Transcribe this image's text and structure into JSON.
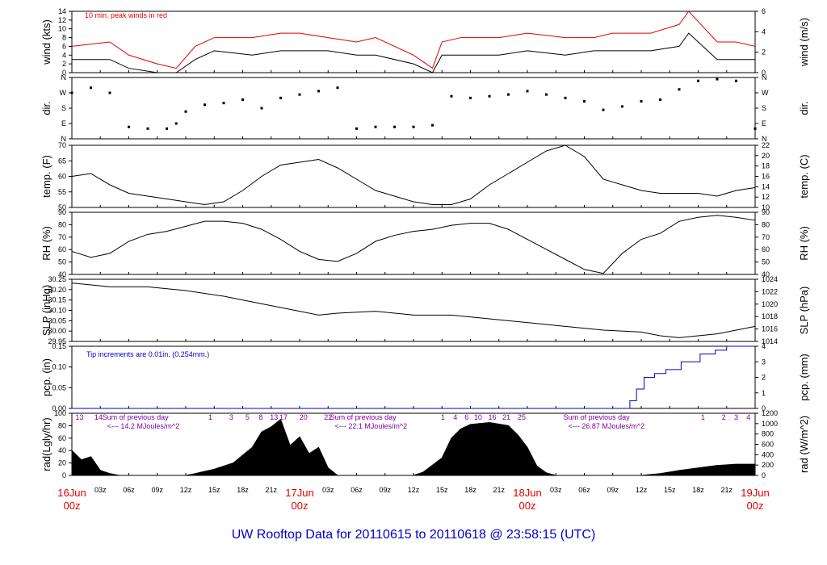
{
  "title": "UW Rooftop Data for 20110615  to  20110618 @ 23:58:15  (UTC)",
  "colors": {
    "axis": "#000000",
    "peak": "#e00000",
    "precip": "#0000cc",
    "radnote": "#8000a0",
    "title": "#0000cc"
  },
  "x_major": [
    {
      "label": "16Jun",
      "sub": "00z",
      "hour": 0
    },
    {
      "label": "17Jun",
      "sub": "00z",
      "hour": 24
    },
    {
      "label": "18Jun",
      "sub": "00z",
      "hour": 48
    },
    {
      "label": "19Jun",
      "sub": "00z",
      "hour": 72
    }
  ],
  "x_minor": [
    {
      "label": "03z",
      "hour": 3
    },
    {
      "label": "06z",
      "hour": 6
    },
    {
      "label": "09z",
      "hour": 9
    },
    {
      "label": "12z",
      "hour": 12
    },
    {
      "label": "15z",
      "hour": 15
    },
    {
      "label": "18z",
      "hour": 18
    },
    {
      "label": "21z",
      "hour": 21
    },
    {
      "label": "03z",
      "hour": 27
    },
    {
      "label": "06z",
      "hour": 30
    },
    {
      "label": "09z",
      "hour": 33
    },
    {
      "label": "12z",
      "hour": 36
    },
    {
      "label": "15z",
      "hour": 39
    },
    {
      "label": "18z",
      "hour": 42
    },
    {
      "label": "21z",
      "hour": 45
    },
    {
      "label": "03z",
      "hour": 51
    },
    {
      "label": "06z",
      "hour": 54
    },
    {
      "label": "09z",
      "hour": 57
    },
    {
      "label": "12z",
      "hour": 60
    },
    {
      "label": "15z",
      "hour": 63
    },
    {
      "label": "18z",
      "hour": 66
    },
    {
      "label": "21z",
      "hour": 69
    }
  ],
  "panels": {
    "wind": {
      "ylabel": "wind (kts)",
      "ylabel_right": "wind (m/s)",
      "note": "10 min. peak winds in red",
      "left_ticks": [
        "0",
        "2",
        "4",
        "6",
        "8",
        "10",
        "12",
        "14"
      ],
      "right_ticks": [
        "0",
        "2",
        "4",
        "6"
      ]
    },
    "dir": {
      "ylabel": "dir.",
      "ylabel_right": "dir.",
      "ticks": [
        "N",
        "E",
        "S",
        "W",
        "N"
      ]
    },
    "temp": {
      "ylabel": "temp. (F)",
      "ylabel_right": "temp. (C)",
      "left_ticks": [
        "50",
        "55",
        "60",
        "65",
        "70"
      ],
      "right_ticks": [
        "10",
        "12",
        "14",
        "16",
        "18",
        "20",
        "22"
      ]
    },
    "rh": {
      "ylabel": "RH (%)",
      "ylabel_right": "RH (%)",
      "left_ticks": [
        "40",
        "50",
        "60",
        "70",
        "80",
        "90"
      ],
      "right_ticks": [
        "40",
        "50",
        "60",
        "70",
        "80",
        "90"
      ]
    },
    "slp": {
      "ylabel": "SLP (inHg)",
      "ylabel_right": "SLP (hPa)",
      "left_ticks": [
        "29.95",
        "30.00",
        "30.05",
        "30.10",
        "30.15",
        "30.20",
        "30.25"
      ],
      "right_ticks": [
        "1014",
        "1016",
        "1018",
        "1020",
        "1022",
        "1024"
      ]
    },
    "pcp": {
      "ylabel": "pcp. (in)",
      "ylabel_right": "pcp. (mm)",
      "note": "Tip increments are 0.01in. (0.254mm.)",
      "left_ticks": [
        "0.00",
        "0.05",
        "0.10",
        "0.15"
      ],
      "right_ticks": [
        "0",
        "1",
        "2",
        "3",
        "4"
      ]
    },
    "rad": {
      "ylabel": "rad(Lgly/hr)",
      "ylabel_right": "rad (W/m^2)",
      "left_ticks": [
        "0",
        "20",
        "40",
        "60",
        "80",
        "100"
      ],
      "right_ticks": [
        "0",
        "200",
        "400",
        "600",
        "800",
        "1000",
        "1200"
      ],
      "sums": [
        {
          "label": "Sum of previous day",
          "value": "<--- 14.2 MJoules/m^2",
          "hour": 3.2
        },
        {
          "label": "Sum of previous day",
          "value": "<--- 22.1 MJoules/m^2",
          "hour": 27.2
        },
        {
          "label": "Sum of previous day",
          "value": "<--- 26.87 MJoules/m^2",
          "hour": 51.8
        }
      ],
      "hour_marks": [
        {
          "t": "13",
          "hour": 0.8
        },
        {
          "t": "14",
          "hour": 2.8
        },
        {
          "t": "1",
          "hour": 14.6
        },
        {
          "t": "3",
          "hour": 16.8
        },
        {
          "t": "5",
          "hour": 18.5
        },
        {
          "t": "8",
          "hour": 19.9
        },
        {
          "t": "13",
          "hour": 21.3
        },
        {
          "t": "17",
          "hour": 22.3
        },
        {
          "t": "20",
          "hour": 24.4
        },
        {
          "t": "22",
          "hour": 27.0
        },
        {
          "t": "1",
          "hour": 39.1
        },
        {
          "t": "4",
          "hour": 40.4
        },
        {
          "t": "6",
          "hour": 41.6
        },
        {
          "t": "10",
          "hour": 42.8
        },
        {
          "t": "16",
          "hour": 44.3
        },
        {
          "t": "21",
          "hour": 45.8
        },
        {
          "t": "25",
          "hour": 47.4
        },
        {
          "t": "1",
          "hour": 66.5
        },
        {
          "t": "2",
          "hour": 68.7
        },
        {
          "t": "3",
          "hour": 70.0
        },
        {
          "t": "4",
          "hour": 71.3
        }
      ]
    }
  },
  "chart_data": [
    {
      "type": "line",
      "panel": "wind",
      "ylabel": "wind (kts)",
      "ylim": [
        0,
        14
      ],
      "x": [
        0,
        4,
        6,
        9,
        11,
        13,
        15,
        19,
        22,
        24,
        27,
        30,
        32,
        36,
        38,
        39,
        41,
        45,
        48,
        52,
        55,
        57,
        61,
        64,
        65,
        68,
        70,
        72
      ],
      "values": [
        3,
        3,
        1,
        0,
        0,
        3,
        5,
        4,
        5,
        5,
        5,
        4,
        4,
        2,
        0,
        4,
        4,
        4,
        5,
        4,
        5,
        5,
        5,
        6,
        9,
        3,
        3,
        3
      ],
      "series": [
        {
          "name": "10 min. peak winds in red",
          "values": [
            6,
            7,
            4,
            2,
            1,
            6,
            8,
            8,
            9,
            9,
            8,
            7,
            8,
            4,
            1,
            7,
            8,
            8,
            9,
            8,
            8,
            9,
            9,
            11,
            14,
            7,
            7,
            6
          ]
        }
      ]
    },
    {
      "type": "scatter",
      "panel": "dir",
      "ylabel": "dir.",
      "ylim": [
        0,
        360
      ],
      "x": [
        0,
        2,
        4,
        6,
        8,
        10,
        11,
        12,
        14,
        16,
        18,
        20,
        22,
        24,
        26,
        28,
        30,
        32,
        34,
        36,
        38,
        40,
        42,
        44,
        46,
        48,
        50,
        52,
        54,
        56,
        58,
        60,
        62,
        64,
        66,
        68,
        70,
        72
      ],
      "values": [
        270,
        300,
        270,
        70,
        60,
        60,
        90,
        160,
        200,
        210,
        230,
        180,
        240,
        260,
        280,
        300,
        60,
        70,
        70,
        70,
        80,
        250,
        240,
        250,
        260,
        280,
        260,
        240,
        220,
        170,
        190,
        220,
        230,
        290,
        340,
        350,
        340,
        60
      ]
    },
    {
      "type": "line",
      "panel": "temp",
      "ylabel": "temp. (F)",
      "ylim": [
        50,
        72
      ],
      "x": [
        0,
        2,
        4,
        6,
        8,
        10,
        12,
        14,
        16,
        18,
        20,
        22,
        24,
        26,
        28,
        30,
        32,
        34,
        36,
        38,
        40,
        42,
        44,
        46,
        48,
        50,
        52,
        54,
        56,
        58,
        60,
        62,
        64,
        66,
        68,
        70,
        72
      ],
      "values": [
        61,
        62,
        58,
        55,
        54,
        53,
        52,
        51,
        52,
        56,
        61,
        65,
        66,
        67,
        64,
        60,
        56,
        54,
        52,
        51,
        51,
        53,
        58,
        62,
        66,
        70,
        72,
        68,
        60,
        58,
        56,
        55,
        55,
        55,
        54,
        56,
        57
      ]
    },
    {
      "type": "line",
      "panel": "rh",
      "ylabel": "RH (%)",
      "ylim": [
        35,
        97
      ],
      "x": [
        0,
        2,
        4,
        6,
        8,
        10,
        12,
        14,
        16,
        18,
        20,
        22,
        24,
        26,
        28,
        30,
        32,
        34,
        36,
        38,
        40,
        42,
        44,
        46,
        48,
        50,
        52,
        54,
        56,
        58,
        60,
        62,
        64,
        66,
        68,
        70,
        72
      ],
      "values": [
        58,
        52,
        56,
        68,
        75,
        78,
        83,
        88,
        88,
        86,
        80,
        70,
        58,
        50,
        48,
        56,
        68,
        74,
        78,
        80,
        84,
        86,
        86,
        80,
        70,
        60,
        50,
        40,
        36,
        56,
        70,
        76,
        88,
        92,
        94,
        92,
        89
      ]
    },
    {
      "type": "line",
      "panel": "slp",
      "ylabel": "SLP (inHg)",
      "ylim": [
        29.93,
        30.26
      ],
      "x": [
        0,
        4,
        8,
        12,
        16,
        20,
        24,
        26,
        28,
        32,
        36,
        40,
        44,
        48,
        52,
        56,
        60,
        62,
        64,
        66,
        68,
        70,
        72
      ],
      "values": [
        30.24,
        30.22,
        30.22,
        30.2,
        30.17,
        30.13,
        30.09,
        30.07,
        30.08,
        30.09,
        30.07,
        30.07,
        30.05,
        30.03,
        30.01,
        29.99,
        29.98,
        29.96,
        29.95,
        29.96,
        29.97,
        29.99,
        30.01
      ]
    },
    {
      "type": "line",
      "panel": "pcp",
      "ylabel": "pcp. (in)",
      "ylim": [
        0,
        0.16
      ],
      "x": [
        0,
        58.2,
        58.8,
        59.5,
        60.3,
        61.4,
        62.6,
        64.2,
        66.2,
        67.8,
        69.0,
        72
      ],
      "values": [
        0,
        0,
        0.02,
        0.05,
        0.08,
        0.09,
        0.1,
        0.12,
        0.14,
        0.15,
        0.16,
        0.16
      ]
    },
    {
      "type": "area",
      "panel": "rad",
      "ylabel": "rad(Lgly/hr)",
      "ylim": [
        0,
        100
      ],
      "x": [
        0,
        1,
        2,
        3,
        4,
        5,
        12,
        13,
        15,
        17,
        19,
        20,
        21,
        22,
        23,
        24,
        25,
        26,
        27,
        28,
        36,
        37,
        39,
        40,
        41,
        42,
        44,
        46,
        47,
        48,
        49,
        50,
        51,
        60,
        62,
        64,
        66,
        68,
        70,
        72
      ],
      "values": [
        40,
        25,
        30,
        8,
        3,
        0,
        0,
        3,
        10,
        20,
        45,
        70,
        78,
        90,
        48,
        62,
        35,
        45,
        12,
        0,
        0,
        5,
        28,
        60,
        75,
        82,
        85,
        80,
        65,
        45,
        15,
        4,
        0,
        0,
        3,
        8,
        12,
        16,
        18,
        18
      ]
    }
  ]
}
